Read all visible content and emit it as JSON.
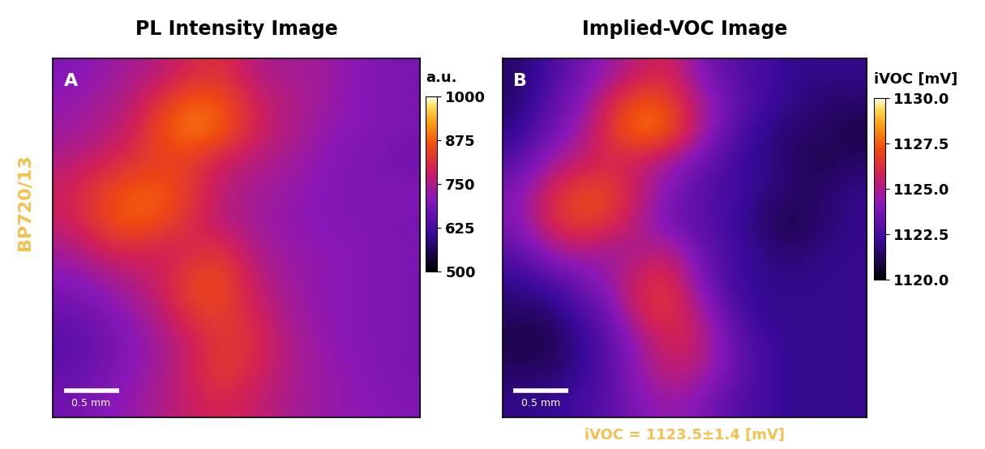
{
  "side_label": "BP720/13",
  "caption": "iVOC = 1123.5±1.4 [mV]",
  "chart_data": [
    {
      "type": "heatmap",
      "title": "PL Intensity Image",
      "panel_label": "A",
      "scale_bar_label": "0.5 mm",
      "colorbar_label": "a.u.",
      "colorbar_range": [
        500,
        1000
      ],
      "colorbar_ticks": [
        500,
        625,
        750,
        875,
        1000
      ],
      "tick_labels": false,
      "cells": [
        [
          700,
          720,
          740,
          760,
          800,
          820,
          760,
          740,
          740,
          720,
          700,
          690
        ],
        [
          720,
          740,
          760,
          830,
          880,
          870,
          800,
          760,
          740,
          720,
          700,
          690
        ],
        [
          730,
          750,
          780,
          860,
          900,
          880,
          800,
          760,
          730,
          710,
          700,
          690
        ],
        [
          760,
          790,
          820,
          840,
          830,
          780,
          760,
          740,
          720,
          700,
          690,
          680
        ],
        [
          790,
          840,
          870,
          880,
          830,
          770,
          740,
          730,
          710,
          700,
          690,
          700
        ],
        [
          780,
          840,
          880,
          860,
          810,
          760,
          740,
          720,
          710,
          700,
          700,
          690
        ],
        [
          740,
          780,
          800,
          780,
          800,
          830,
          760,
          730,
          720,
          710,
          700,
          690
        ],
        [
          700,
          720,
          750,
          790,
          850,
          860,
          780,
          740,
          720,
          710,
          700,
          690
        ],
        [
          670,
          690,
          720,
          760,
          830,
          840,
          800,
          750,
          720,
          710,
          700,
          690
        ],
        [
          650,
          670,
          700,
          740,
          780,
          830,
          820,
          760,
          730,
          710,
          700,
          690
        ],
        [
          660,
          680,
          710,
          740,
          790,
          840,
          800,
          760,
          730,
          720,
          700,
          690
        ],
        [
          680,
          700,
          720,
          750,
          780,
          800,
          780,
          750,
          730,
          720,
          710,
          700
        ]
      ]
    },
    {
      "type": "heatmap",
      "title": "Implied-VOC Image",
      "panel_label": "B",
      "scale_bar_label": "0.5 mm",
      "colorbar_label": "iVOC [mV]",
      "colorbar_range": [
        1120.0,
        1130.0
      ],
      "colorbar_ticks": [
        1120.0,
        1122.5,
        1125.0,
        1127.5,
        1130.0
      ],
      "tick_labels": false,
      "cells": [
        [
          1121.5,
          1122.5,
          1123.5,
          1124.5,
          1125.5,
          1126.0,
          1124.0,
          1123.0,
          1122.5,
          1122.0,
          1122.0,
          1122.0
        ],
        [
          1121.5,
          1123.0,
          1124.0,
          1126.0,
          1127.5,
          1127.0,
          1125.0,
          1123.5,
          1122.5,
          1122.0,
          1121.5,
          1121.5
        ],
        [
          1122.0,
          1123.5,
          1124.5,
          1126.5,
          1128.0,
          1127.5,
          1125.0,
          1123.0,
          1122.0,
          1121.5,
          1121.5,
          1121.0
        ],
        [
          1123.0,
          1124.5,
          1125.5,
          1126.0,
          1125.5,
          1124.5,
          1123.5,
          1122.5,
          1122.0,
          1121.5,
          1121.0,
          1121.5
        ],
        [
          1124.0,
          1126.0,
          1127.0,
          1127.0,
          1125.5,
          1124.0,
          1123.0,
          1122.5,
          1122.0,
          1121.5,
          1121.5,
          1122.0
        ],
        [
          1124.0,
          1126.0,
          1127.0,
          1126.5,
          1125.0,
          1123.5,
          1123.0,
          1122.5,
          1121.5,
          1121.0,
          1121.5,
          1122.0
        ],
        [
          1123.0,
          1124.5,
          1125.0,
          1124.5,
          1125.0,
          1125.5,
          1123.5,
          1122.5,
          1122.0,
          1121.5,
          1122.0,
          1122.0
        ],
        [
          1122.0,
          1122.5,
          1123.5,
          1124.5,
          1126.0,
          1126.5,
          1124.0,
          1122.5,
          1122.0,
          1122.0,
          1122.0,
          1122.0
        ],
        [
          1121.5,
          1121.5,
          1122.5,
          1123.5,
          1126.0,
          1126.5,
          1125.0,
          1123.0,
          1122.0,
          1122.0,
          1122.0,
          1122.0
        ],
        [
          1121.0,
          1121.0,
          1122.0,
          1123.0,
          1124.5,
          1126.0,
          1125.5,
          1123.5,
          1122.5,
          1122.0,
          1122.0,
          1122.0
        ],
        [
          1121.5,
          1121.5,
          1122.0,
          1123.0,
          1124.5,
          1125.5,
          1125.0,
          1123.5,
          1122.5,
          1122.0,
          1122.0,
          1122.0
        ],
        [
          1122.0,
          1122.0,
          1122.5,
          1123.0,
          1124.0,
          1124.5,
          1124.0,
          1123.0,
          1122.5,
          1122.0,
          1122.0,
          1122.0
        ]
      ]
    }
  ]
}
